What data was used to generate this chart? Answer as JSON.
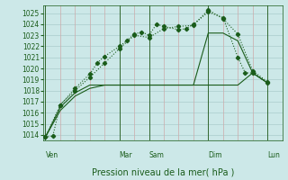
{
  "background_color": "#cce8e8",
  "grid_color_h": "#aacccc",
  "grid_color_v": "#ccaaaa",
  "line_color": "#1a5c1a",
  "title": "Pression niveau de la mer( hPa )",
  "ylim": [
    1013.5,
    1025.7
  ],
  "xlim": [
    -0.3,
    32
  ],
  "yticks": [
    1014,
    1015,
    1016,
    1017,
    1018,
    1019,
    1020,
    1021,
    1022,
    1023,
    1024,
    1025
  ],
  "day_labels": [
    "Ven",
    "Mar",
    "Sam",
    "Dim",
    "Lun"
  ],
  "day_positions": [
    0,
    10,
    14,
    22,
    30
  ],
  "vline_positions": [
    0,
    2,
    4,
    6,
    8,
    10,
    12,
    14,
    16,
    18,
    20,
    22,
    24,
    26,
    28,
    30
  ],
  "line1_x": [
    0,
    1,
    2,
    4,
    6,
    7,
    8,
    10,
    11,
    12,
    13,
    14,
    15,
    16,
    18,
    19,
    20,
    22,
    24,
    26,
    27,
    28,
    30
  ],
  "line1_y": [
    1013.8,
    1013.9,
    1016.7,
    1018.2,
    1019.5,
    1020.5,
    1021.1,
    1022.0,
    1022.5,
    1023.1,
    1023.3,
    1023.0,
    1024.0,
    1023.8,
    1023.5,
    1023.6,
    1024.0,
    1025.1,
    1024.6,
    1021.0,
    1019.6,
    1019.6,
    1018.7
  ],
  "line2_x": [
    0,
    2,
    4,
    6,
    8,
    10,
    12,
    14,
    16,
    18,
    20,
    22,
    24,
    26,
    28,
    30
  ],
  "line2_y": [
    1013.8,
    1016.7,
    1018.0,
    1019.2,
    1020.5,
    1021.8,
    1023.0,
    1022.8,
    1023.6,
    1023.8,
    1023.9,
    1025.3,
    1024.5,
    1023.1,
    1019.8,
    1018.8
  ],
  "line3_x": [
    0,
    2,
    4,
    6,
    8,
    10,
    12,
    14,
    16,
    18,
    20,
    22,
    24,
    26,
    28,
    30
  ],
  "line3_y": [
    1013.8,
    1016.5,
    1017.8,
    1018.5,
    1018.5,
    1018.5,
    1018.5,
    1018.5,
    1018.5,
    1018.5,
    1018.5,
    1023.2,
    1023.2,
    1022.5,
    1019.6,
    1018.7
  ],
  "line4_x": [
    0,
    2,
    4,
    6,
    8,
    10,
    12,
    14,
    16,
    18,
    20,
    22,
    24,
    26,
    28,
    30
  ],
  "line4_y": [
    1013.8,
    1016.2,
    1017.5,
    1018.2,
    1018.5,
    1018.5,
    1018.5,
    1018.5,
    1018.5,
    1018.5,
    1018.5,
    1018.5,
    1018.5,
    1018.5,
    1019.6,
    1018.7
  ],
  "title_fontsize": 7,
  "tick_fontsize": 5.5
}
